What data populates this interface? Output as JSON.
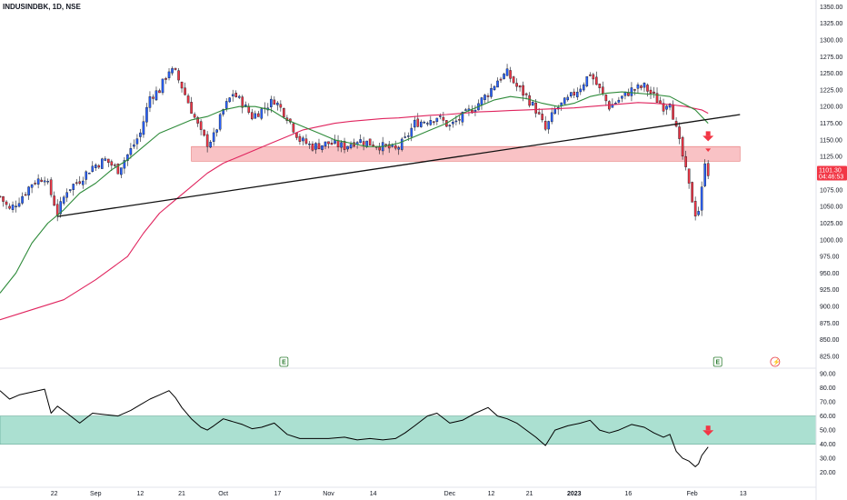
{
  "header": {
    "title": "INDUSINDBK, 1D, NSE"
  },
  "price_tag": {
    "price": "1101.30",
    "countdown": "04:46:53",
    "value": 1101.3,
    "color": "#f23645"
  },
  "events": [
    {
      "label": "E",
      "kind": "earnings",
      "index": 89
    },
    {
      "label": "E",
      "kind": "earnings",
      "index": 225
    },
    {
      "label": "⚡",
      "kind": "dividend",
      "index": 243
    }
  ],
  "colors": {
    "up": "#2962ff",
    "down": "#f23645",
    "ma_fast": "#2e8b3a",
    "ma_slow": "#e0245e",
    "zone_price": "#f7a8ad",
    "zone_rsi": "#8fd6c2",
    "trendline": "#111111",
    "arrow": "#f23645"
  },
  "chart_data": [
    {
      "type": "candlestick",
      "name": "",
      "ylim": [
        810,
        1360
      ],
      "y_ticks": [
        "825.00",
        "850.00",
        "875.00",
        "900.00",
        "925.00",
        "950.00",
        "975.00",
        "1000.00",
        "1025.00",
        "1050.00",
        "1075.00",
        "1100.00",
        "1125.00",
        "1150.00",
        "1175.00",
        "1200.00",
        "1225.00",
        "1250.00",
        "1275.00",
        "1300.00",
        "1325.00",
        "1350.00"
      ],
      "x_labels": [
        {
          "label": "22",
          "index": 17,
          "bold": false
        },
        {
          "label": "Sep",
          "index": 30,
          "bold": false
        },
        {
          "label": "12",
          "index": 44,
          "bold": false
        },
        {
          "label": "21",
          "index": 57,
          "bold": false
        },
        {
          "label": "Oct",
          "index": 70,
          "bold": false
        },
        {
          "label": "17",
          "index": 87,
          "bold": false
        },
        {
          "label": "Nov",
          "index": 103,
          "bold": false
        },
        {
          "label": "14",
          "index": 117,
          "bold": false
        },
        {
          "label": "Dec",
          "index": 141,
          "bold": false
        },
        {
          "label": "12",
          "index": 154,
          "bold": false
        },
        {
          "label": "21",
          "index": 166,
          "bold": false
        },
        {
          "label": "2023",
          "index": 180,
          "bold": true
        },
        {
          "label": "16",
          "index": 197,
          "bold": false
        },
        {
          "label": "Feb",
          "index": 217,
          "bold": false
        },
        {
          "label": "13",
          "index": 233,
          "bold": false
        }
      ],
      "x_range": [
        0,
        255
      ],
      "candle_anchors": [
        [
          0,
          1065
        ],
        [
          3,
          1045
        ],
        [
          6,
          1060
        ],
        [
          10,
          1085
        ],
        [
          14,
          1095
        ],
        [
          17,
          1055
        ],
        [
          18,
          1040
        ],
        [
          21,
          1075
        ],
        [
          25,
          1090
        ],
        [
          29,
          1110
        ],
        [
          33,
          1120
        ],
        [
          37,
          1105
        ],
        [
          41,
          1135
        ],
        [
          44,
          1160
        ],
        [
          47,
          1215
        ],
        [
          50,
          1225
        ],
        [
          53,
          1255
        ],
        [
          55,
          1250
        ],
        [
          57,
          1230
        ],
        [
          60,
          1195
        ],
        [
          63,
          1160
        ],
        [
          65,
          1145
        ],
        [
          67,
          1155
        ],
        [
          70,
          1195
        ],
        [
          73,
          1220
        ],
        [
          76,
          1205
        ],
        [
          79,
          1185
        ],
        [
          82,
          1195
        ],
        [
          86,
          1210
        ],
        [
          90,
          1185
        ],
        [
          94,
          1150
        ],
        [
          98,
          1140
        ],
        [
          103,
          1145
        ],
        [
          108,
          1140
        ],
        [
          112,
          1150
        ],
        [
          116,
          1145
        ],
        [
          120,
          1140
        ],
        [
          124,
          1135
        ],
        [
          127,
          1150
        ],
        [
          130,
          1175
        ],
        [
          134,
          1180
        ],
        [
          137,
          1185
        ],
        [
          141,
          1170
        ],
        [
          145,
          1185
        ],
        [
          149,
          1200
        ],
        [
          153,
          1220
        ],
        [
          156,
          1240
        ],
        [
          159,
          1250
        ],
        [
          162,
          1230
        ],
        [
          165,
          1215
        ],
        [
          168,
          1195
        ],
        [
          171,
          1165
        ],
        [
          174,
          1195
        ],
        [
          178,
          1210
        ],
        [
          182,
          1230
        ],
        [
          185,
          1250
        ],
        [
          188,
          1225
        ],
        [
          191,
          1200
        ],
        [
          194,
          1210
        ],
        [
          198,
          1225
        ],
        [
          202,
          1230
        ],
        [
          205,
          1215
        ],
        [
          208,
          1200
        ],
        [
          210,
          1210
        ],
        [
          212,
          1165
        ],
        [
          214,
          1125
        ],
        [
          216,
          1080
        ],
        [
          218,
          1040
        ],
        [
          219,
          1045
        ],
        [
          220,
          1075
        ],
        [
          221,
          1120
        ],
        [
          222,
          1101
        ]
      ],
      "ma_fast": {
        "name": "",
        "values": [
          [
            0,
            920
          ],
          [
            5,
            950
          ],
          [
            10,
            995
          ],
          [
            15,
            1025
          ],
          [
            20,
            1045
          ],
          [
            25,
            1070
          ],
          [
            30,
            1085
          ],
          [
            35,
            1105
          ],
          [
            40,
            1120
          ],
          [
            45,
            1140
          ],
          [
            50,
            1160
          ],
          [
            55,
            1170
          ],
          [
            60,
            1180
          ],
          [
            65,
            1185
          ],
          [
            70,
            1195
          ],
          [
            75,
            1200
          ],
          [
            80,
            1200
          ],
          [
            85,
            1195
          ],
          [
            90,
            1180
          ],
          [
            95,
            1170
          ],
          [
            100,
            1160
          ],
          [
            105,
            1150
          ],
          [
            110,
            1145
          ],
          [
            115,
            1140
          ],
          [
            120,
            1140
          ],
          [
            125,
            1145
          ],
          [
            130,
            1155
          ],
          [
            135,
            1165
          ],
          [
            140,
            1175
          ],
          [
            145,
            1190
          ],
          [
            150,
            1200
          ],
          [
            155,
            1210
          ],
          [
            160,
            1215
          ],
          [
            165,
            1212
          ],
          [
            170,
            1205
          ],
          [
            175,
            1200
          ],
          [
            180,
            1205
          ],
          [
            185,
            1215
          ],
          [
            190,
            1220
          ],
          [
            195,
            1222
          ],
          [
            200,
            1220
          ],
          [
            205,
            1218
          ],
          [
            210,
            1215
          ],
          [
            214,
            1205
          ],
          [
            218,
            1195
          ],
          [
            222,
            1175
          ]
        ]
      },
      "ma_slow": {
        "name": "",
        "values": [
          [
            0,
            880
          ],
          [
            10,
            895
          ],
          [
            20,
            910
          ],
          [
            30,
            940
          ],
          [
            40,
            975
          ],
          [
            45,
            1010
          ],
          [
            50,
            1040
          ],
          [
            55,
            1060
          ],
          [
            60,
            1080
          ],
          [
            65,
            1100
          ],
          [
            70,
            1115
          ],
          [
            75,
            1125
          ],
          [
            80,
            1135
          ],
          [
            85,
            1145
          ],
          [
            90,
            1155
          ],
          [
            95,
            1165
          ],
          [
            100,
            1170
          ],
          [
            105,
            1175
          ],
          [
            110,
            1178
          ],
          [
            115,
            1180
          ],
          [
            120,
            1182
          ],
          [
            125,
            1183
          ],
          [
            130,
            1185
          ],
          [
            135,
            1187
          ],
          [
            140,
            1188
          ],
          [
            145,
            1190
          ],
          [
            150,
            1192
          ],
          [
            155,
            1193
          ],
          [
            160,
            1194
          ],
          [
            165,
            1195
          ],
          [
            170,
            1196
          ],
          [
            175,
            1197
          ],
          [
            180,
            1198
          ],
          [
            185,
            1200
          ],
          [
            190,
            1202
          ],
          [
            195,
            1204
          ],
          [
            200,
            1206
          ],
          [
            205,
            1205
          ],
          [
            210,
            1203
          ],
          [
            215,
            1200
          ],
          [
            220,
            1195
          ],
          [
            222,
            1190
          ]
        ]
      },
      "trendline": {
        "from": [
          18,
          1035
        ],
        "to": [
          232,
          1188
        ]
      },
      "zone": {
        "from_index": 60,
        "to_index": 232,
        "low": 1118,
        "high": 1140
      },
      "arrow": {
        "index": 222,
        "value": 1152,
        "direction": "down"
      }
    },
    {
      "type": "line",
      "name": "",
      "ylim": [
        12,
        92
      ],
      "y_ticks": [
        "20.00",
        "30.00",
        "40.00",
        "50.00",
        "60.00",
        "70.00",
        "80.00",
        "90.00"
      ],
      "zone": {
        "low": 40,
        "high": 60
      },
      "arrow": {
        "index": 222,
        "value": 48,
        "direction": "down"
      },
      "values": [
        [
          0,
          78
        ],
        [
          3,
          72
        ],
        [
          6,
          75
        ],
        [
          10,
          77
        ],
        [
          14,
          79
        ],
        [
          16,
          62
        ],
        [
          18,
          67
        ],
        [
          21,
          62
        ],
        [
          25,
          55
        ],
        [
          29,
          62
        ],
        [
          33,
          61
        ],
        [
          37,
          60
        ],
        [
          41,
          64
        ],
        [
          44,
          68
        ],
        [
          47,
          72
        ],
        [
          50,
          75
        ],
        [
          53,
          78
        ],
        [
          55,
          73
        ],
        [
          57,
          66
        ],
        [
          60,
          58
        ],
        [
          63,
          52
        ],
        [
          65,
          50
        ],
        [
          67,
          53
        ],
        [
          70,
          58
        ],
        [
          73,
          56
        ],
        [
          76,
          54
        ],
        [
          79,
          51
        ],
        [
          82,
          52
        ],
        [
          86,
          55
        ],
        [
          90,
          47
        ],
        [
          94,
          44
        ],
        [
          98,
          44
        ],
        [
          103,
          44
        ],
        [
          108,
          45
        ],
        [
          112,
          43
        ],
        [
          116,
          44
        ],
        [
          120,
          43
        ],
        [
          124,
          44
        ],
        [
          127,
          48
        ],
        [
          130,
          53
        ],
        [
          134,
          60
        ],
        [
          137,
          62
        ],
        [
          141,
          55
        ],
        [
          145,
          57
        ],
        [
          149,
          62
        ],
        [
          153,
          66
        ],
        [
          156,
          60
        ],
        [
          159,
          58
        ],
        [
          162,
          55
        ],
        [
          165,
          50
        ],
        [
          168,
          45
        ],
        [
          171,
          39
        ],
        [
          174,
          50
        ],
        [
          178,
          53
        ],
        [
          182,
          55
        ],
        [
          185,
          57
        ],
        [
          188,
          50
        ],
        [
          191,
          48
        ],
        [
          194,
          50
        ],
        [
          198,
          54
        ],
        [
          202,
          52
        ],
        [
          205,
          48
        ],
        [
          208,
          45
        ],
        [
          210,
          47
        ],
        [
          212,
          35
        ],
        [
          214,
          30
        ],
        [
          216,
          28
        ],
        [
          218,
          24
        ],
        [
          219,
          26
        ],
        [
          220,
          32
        ],
        [
          222,
          38
        ]
      ]
    }
  ]
}
